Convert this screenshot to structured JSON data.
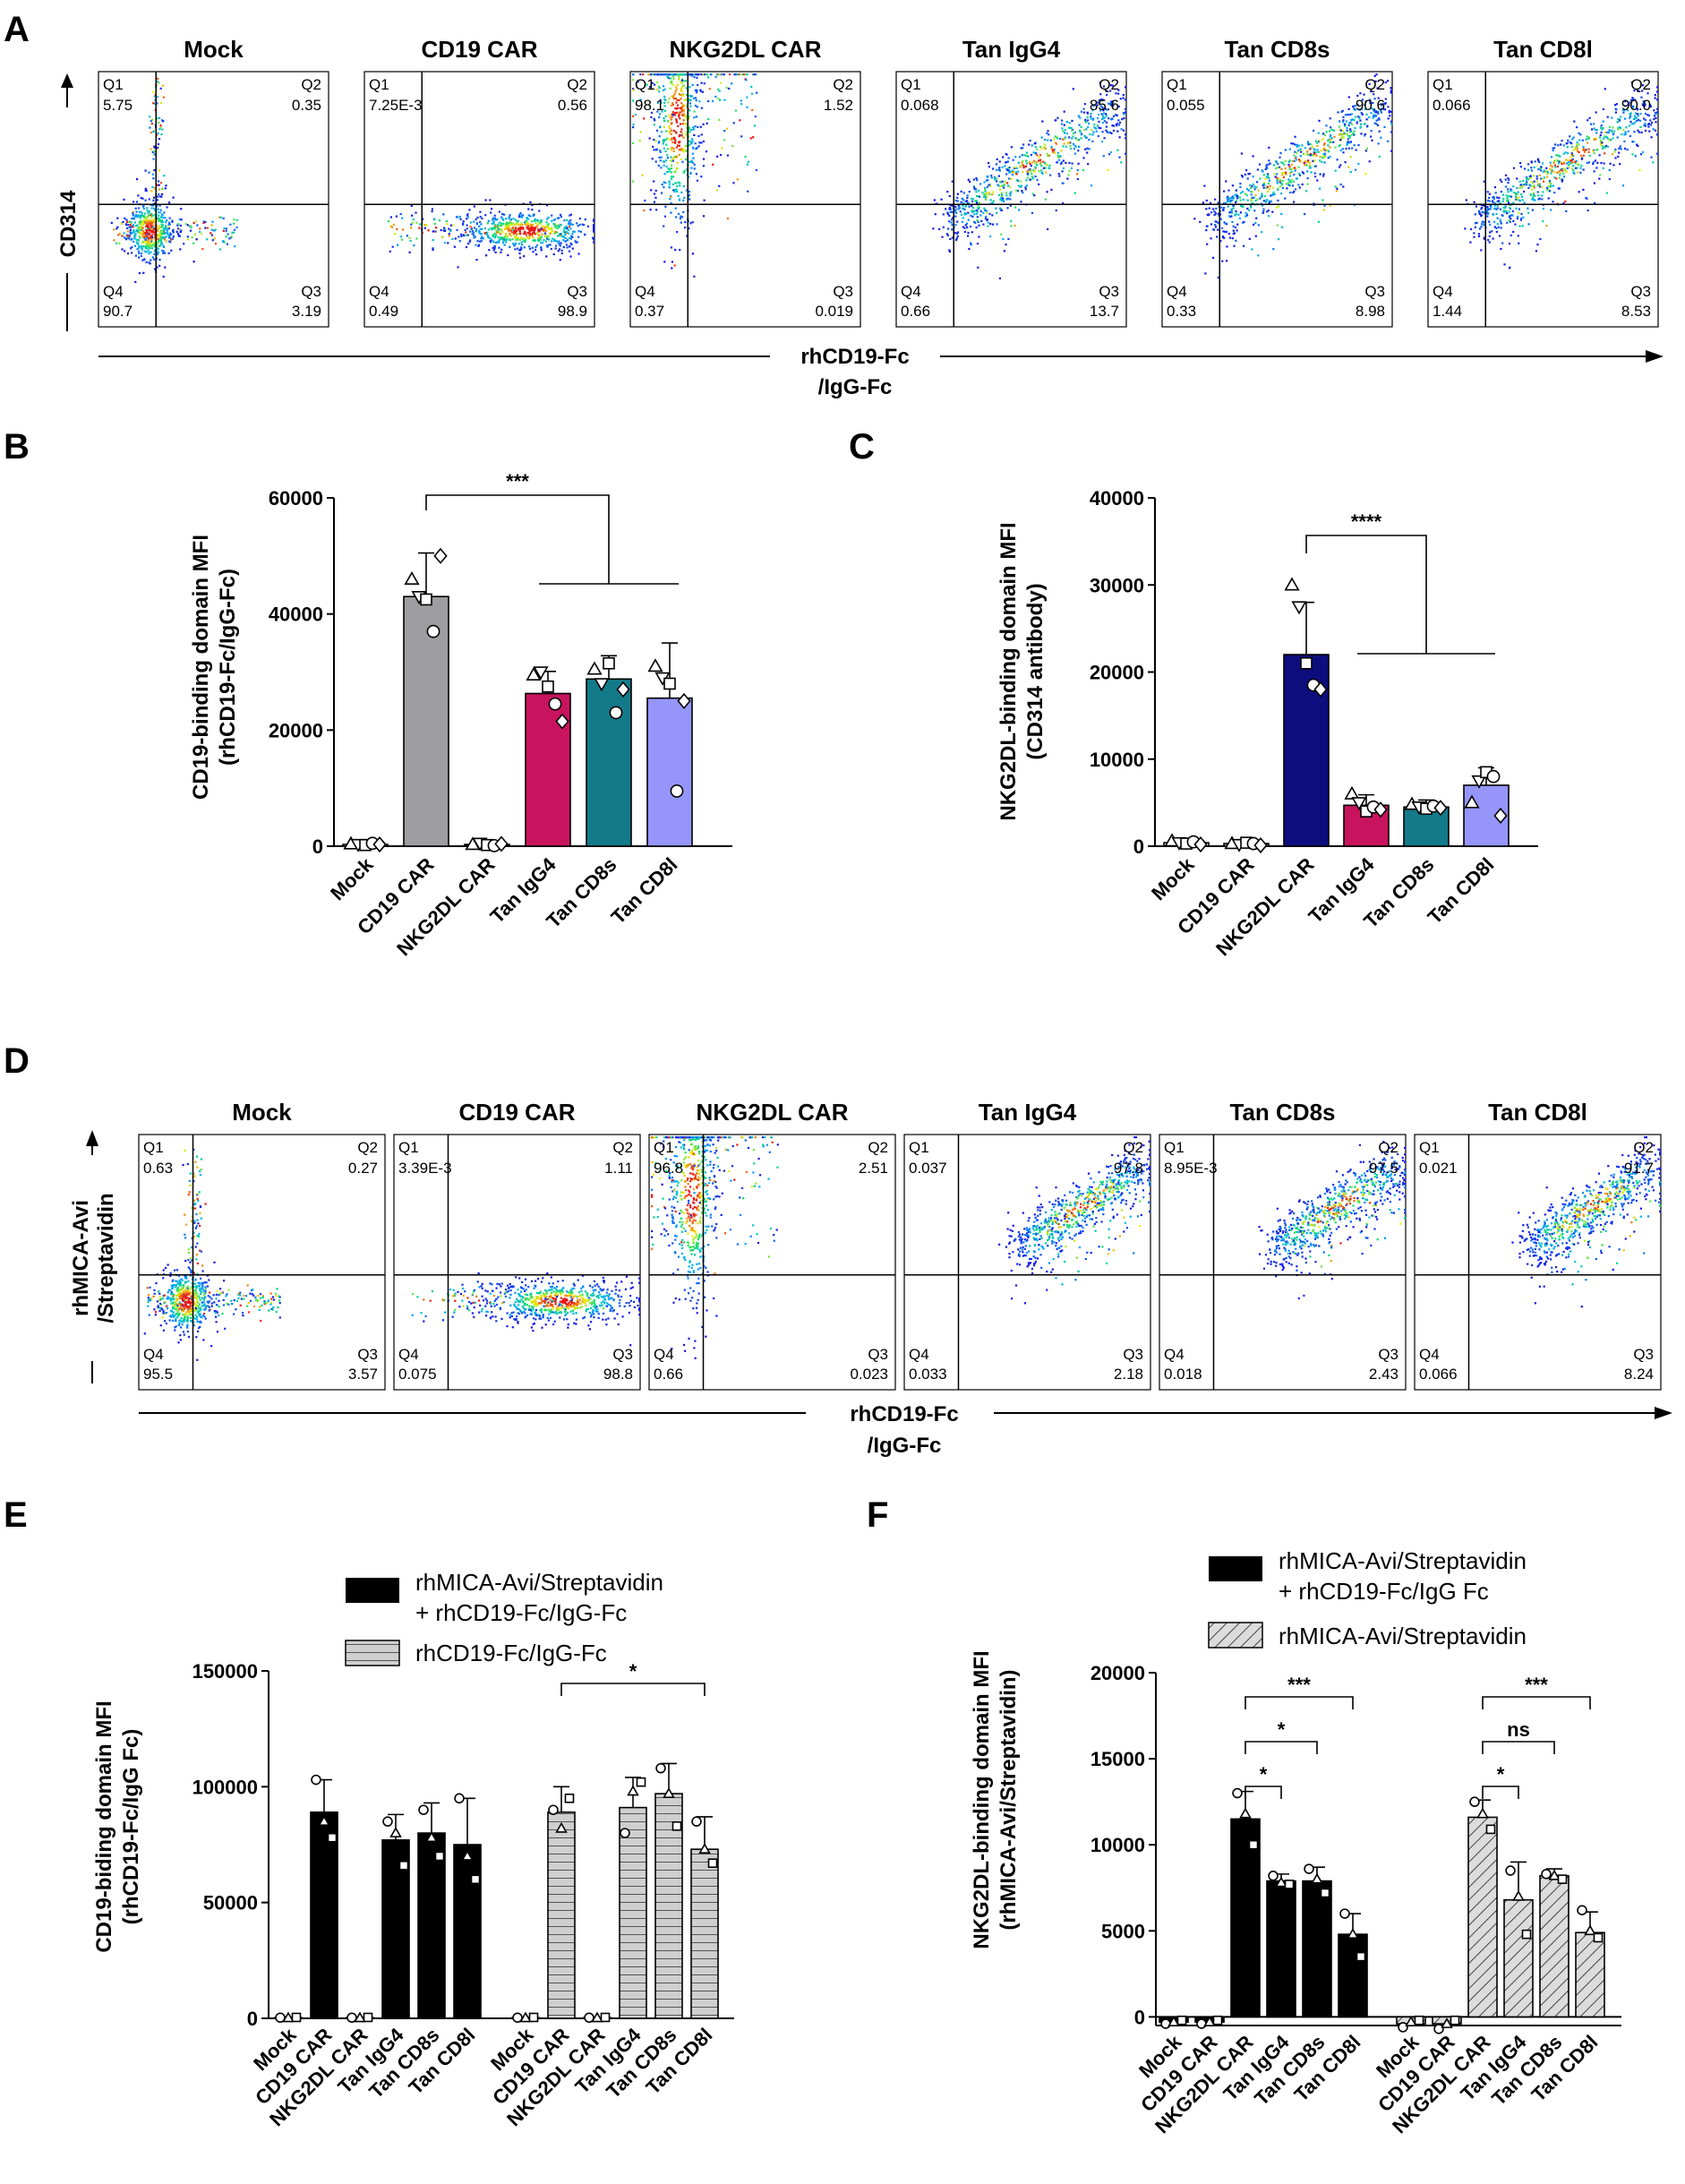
{
  "panel_labels": [
    "A",
    "B",
    "C",
    "D",
    "E",
    "F"
  ],
  "colors": {
    "mock": "#ffffff",
    "cd19car": "#9e9ea2",
    "nkg2dl": "#0d0d7e",
    "igg4": "#c8145e",
    "cd8s": "#137a8a",
    "cd8l": "#9696fa",
    "black": "#000000",
    "grey": "#cccccc"
  },
  "chart_data": [
    {
      "id": "A",
      "type": "scatter",
      "subtype": "flow-cytometry-quadrant",
      "xlabel": "rhCD19-Fc /IgG-Fc",
      "xlabel_lines": [
        "rhCD19-Fc",
        "/IgG-Fc"
      ],
      "ylabel": "CD314",
      "quadrant_labels": [
        "Q1",
        "Q2",
        "Q3",
        "Q4"
      ],
      "plots": [
        {
          "title": "Mock",
          "Q1": "5.75",
          "Q2": "0.35",
          "Q3": "3.19",
          "Q4": "90.7",
          "pattern": "neg"
        },
        {
          "title": "CD19 CAR",
          "Q1": "7.25E-3",
          "Q2": "0.56",
          "Q3": "98.9",
          "Q4": "0.49",
          "pattern": "xpos"
        },
        {
          "title": "NKG2DL CAR",
          "Q1": "98.1",
          "Q2": "1.52",
          "Q3": "0.019",
          "Q4": "0.37",
          "pattern": "ypos"
        },
        {
          "title": "Tan IgG4",
          "Q1": "0.068",
          "Q2": "85.6",
          "Q3": "13.7",
          "Q4": "0.66",
          "pattern": "diag"
        },
        {
          "title": "Tan CD8s",
          "Q1": "0.055",
          "Q2": "90.6",
          "Q3": "8.98",
          "Q4": "0.33",
          "pattern": "diag"
        },
        {
          "title": "Tan CD8l",
          "Q1": "0.066",
          "Q2": "90.0",
          "Q3": "8.53",
          "Q4": "1.44",
          "pattern": "diag"
        }
      ]
    },
    {
      "id": "B",
      "type": "bar",
      "ylabel": "CD19-binding domain MFI (rhCD19-Fc/IgG-Fc)",
      "ylabel_lines": [
        "CD19-binding domain MFI",
        "(rhCD19-Fc/IgG-Fc)"
      ],
      "categories": [
        "Mock",
        "CD19 CAR",
        "NKG2DL CAR",
        "Tan IgG4",
        "Tan CD8s",
        "Tan CD8l"
      ],
      "values": [
        300,
        43000,
        300,
        26300,
        28800,
        25500
      ],
      "errors": [
        300,
        7500,
        300,
        3800,
        4000,
        9500
      ],
      "points": [
        [
          400,
          300,
          200,
          500,
          300
        ],
        [
          46000,
          43000,
          42500,
          37000,
          50000
        ],
        [
          300,
          500,
          200,
          100,
          400
        ],
        [
          29500,
          30000,
          27500,
          24500,
          21500
        ],
        [
          30500,
          28000,
          31500,
          23000,
          27000
        ],
        [
          31000,
          29000,
          28000,
          9500,
          25000
        ]
      ],
      "ylim": [
        0,
        60000
      ],
      "yticks": [
        0,
        20000,
        40000,
        60000
      ],
      "significance": [
        {
          "label": "***",
          "from": 1,
          "to": [
            3,
            4,
            5
          ]
        }
      ]
    },
    {
      "id": "C",
      "type": "bar",
      "ylabel": "NKG2DL-binding domain MFI (CD314 antibody)",
      "ylabel_lines": [
        "NKG2DL-binding domain MFI",
        "(CD314 antibody)"
      ],
      "categories": [
        "Mock",
        "CD19 CAR",
        "NKG2DL CAR",
        "Tan IgG4",
        "Tan CD8s",
        "Tan CD8l"
      ],
      "values": [
        400,
        300,
        22000,
        4700,
        4500,
        7000
      ],
      "errors": [
        300,
        200,
        6000,
        1200,
        800,
        2000
      ],
      "points": [
        [
          600,
          400,
          300,
          500,
          200
        ],
        [
          300,
          200,
          400,
          300,
          100
        ],
        [
          30000,
          27500,
          21000,
          18500,
          18000
        ],
        [
          6000,
          5000,
          4000,
          4500,
          4200
        ],
        [
          4800,
          4500,
          4300,
          4600,
          4400
        ],
        [
          5000,
          7500,
          8500,
          8000,
          3500
        ]
      ],
      "ylim": [
        0,
        40000
      ],
      "yticks": [
        0,
        10000,
        20000,
        30000,
        40000
      ],
      "significance": [
        {
          "label": "****",
          "from": 2,
          "to": [
            3,
            4,
            5
          ]
        }
      ]
    },
    {
      "id": "D",
      "type": "scatter",
      "subtype": "flow-cytometry-quadrant",
      "xlabel": "rhCD19-Fc /IgG-Fc",
      "xlabel_lines": [
        "rhCD19-Fc",
        "/IgG-Fc"
      ],
      "ylabel": "rhMICA-Avi /Streptavidin",
      "ylabel_lines": [
        "rhMICA-Avi",
        "/Streptavidin"
      ],
      "quadrant_labels": [
        "Q1",
        "Q2",
        "Q3",
        "Q4"
      ],
      "plots": [
        {
          "title": "Mock",
          "Q1": "0.63",
          "Q2": "0.27",
          "Q3": "3.57",
          "Q4": "95.5",
          "pattern": "neg"
        },
        {
          "title": "CD19 CAR",
          "Q1": "3.39E-3",
          "Q2": "1.11",
          "Q3": "98.8",
          "Q4": "0.075",
          "pattern": "xpos"
        },
        {
          "title": "NKG2DL CAR",
          "Q1": "96.8",
          "Q2": "2.51",
          "Q3": "0.023",
          "Q4": "0.66",
          "pattern": "ypos"
        },
        {
          "title": "Tan IgG4",
          "Q1": "0.037",
          "Q2": "97.8",
          "Q3": "2.18",
          "Q4": "0.033",
          "pattern": "diag2"
        },
        {
          "title": "Tan CD8s",
          "Q1": "8.95E-3",
          "Q2": "97.5",
          "Q3": "2.43",
          "Q4": "0.018",
          "pattern": "diag2"
        },
        {
          "title": "Tan CD8l",
          "Q1": "0.021",
          "Q2": "91.7",
          "Q3": "8.24",
          "Q4": "0.066",
          "pattern": "diag2"
        }
      ]
    },
    {
      "id": "E",
      "type": "bar",
      "ylabel": "CD19-biding domain MFI (rhCD19-Fc/IgG Fc)",
      "ylabel_lines": [
        "CD19-biding domain MFI",
        "(rhCD19-Fc/IgG Fc)"
      ],
      "categories": [
        "Mock",
        "CD19 CAR",
        "NKG2DL CAR",
        "Tan IgG4",
        "Tan CD8s",
        "Tan CD8l"
      ],
      "legend": [
        "rhMICA-Avi/Streptavidin + rhCD19-Fc/IgG-Fc",
        "rhCD19-Fc/IgG-Fc"
      ],
      "legend_lines": [
        [
          "rhMICA-Avi/Streptavidin",
          "+ rhCD19-Fc/IgG-Fc"
        ],
        [
          "rhCD19-Fc/IgG-Fc"
        ]
      ],
      "series": [
        {
          "name": "rhMICA-Avi/Streptavidin + rhCD19-Fc/IgG-Fc",
          "fill": "black",
          "values": [
            300,
            89000,
            300,
            77000,
            80000,
            75000
          ],
          "errors": [
            300,
            14000,
            300,
            11000,
            13000,
            20000
          ],
          "points": [
            [
              300,
              200,
              400
            ],
            [
              103000,
              85000,
              78000
            ],
            [
              300,
              200,
              400
            ],
            [
              85000,
              80000,
              66000
            ],
            [
              90000,
              78000,
              70000
            ],
            [
              95000,
              70000,
              60000
            ]
          ]
        },
        {
          "name": "rhCD19-Fc/IgG-Fc",
          "fill": "grey-striped",
          "values": [
            300,
            89000,
            300,
            91000,
            97000,
            73000
          ],
          "errors": [
            300,
            11000,
            300,
            13000,
            13000,
            14000
          ],
          "points": [
            [
              300,
              200,
              400
            ],
            [
              90000,
              82000,
              95000
            ],
            [
              300,
              200,
              400
            ],
            [
              80000,
              98000,
              102000
            ],
            [
              108000,
              97000,
              83000
            ],
            [
              85000,
              73000,
              67000
            ]
          ]
        }
      ],
      "ylim": [
        0,
        150000
      ],
      "yticks": [
        0,
        50000,
        100000,
        150000
      ],
      "significance": [
        {
          "label": "*",
          "series": 1,
          "from": 1,
          "to": [
            5
          ]
        }
      ]
    },
    {
      "id": "F",
      "type": "bar",
      "ylabel": "NKG2DL-binding domain MFI (rhMICA-Avi/Streptavidin)",
      "ylabel_lines": [
        "NKG2DL-binding domain MFI",
        "(rhMICA-Avi/Streptavidin)"
      ],
      "categories": [
        "Mock",
        "CD19 CAR",
        "NKG2DL CAR",
        "Tan IgG4",
        "Tan CD8s",
        "Tan CD8l"
      ],
      "legend": [
        "rhMICA-Avi/Streptavidin + rhCD19-Fc/IgG Fc",
        "rhMICA-Avi/Streptavidin"
      ],
      "legend_lines": [
        [
          "rhMICA-Avi/Streptavidin",
          "+ rhCD19-Fc/IgG Fc"
        ],
        [
          "rhMICA-Avi/Streptavidin"
        ]
      ],
      "series": [
        {
          "name": "rhMICA-Avi/Streptavidin + rhCD19-Fc/IgG Fc",
          "fill": "black",
          "values": [
            -300,
            -300,
            11500,
            7900,
            7900,
            4800
          ],
          "errors": [
            150,
            150,
            1600,
            400,
            800,
            1200
          ],
          "points": [
            [
              -400,
              -300,
              -200
            ],
            [
              -400,
              -300,
              -200
            ],
            [
              13000,
              11800,
              10000
            ],
            [
              8200,
              7800,
              7700
            ],
            [
              8600,
              8000,
              7200
            ],
            [
              6000,
              4800,
              3500
            ]
          ]
        },
        {
          "name": "rhMICA-Avi/Streptavidin",
          "fill": "grey-hatched",
          "values": [
            -400,
            -400,
            11600,
            6800,
            8200,
            4900
          ],
          "errors": [
            350,
            350,
            1000,
            2200,
            400,
            1200
          ],
          "points": [
            [
              -600,
              -300,
              -200
            ],
            [
              -700,
              -400,
              -200
            ],
            [
              12500,
              11800,
              10900
            ],
            [
              8500,
              7000,
              4800
            ],
            [
              8300,
              8200,
              8000
            ],
            [
              6200,
              5000,
              4600
            ]
          ]
        }
      ],
      "ylim": [
        -500,
        20000
      ],
      "yticks": [
        0,
        5000,
        10000,
        15000,
        20000
      ],
      "significance": [
        {
          "label": "*",
          "series": 0,
          "from": 2,
          "to": [
            3
          ]
        },
        {
          "label": "*",
          "series": 0,
          "from": 2,
          "to": [
            4
          ]
        },
        {
          "label": "***",
          "series": 0,
          "from": 2,
          "to": [
            5
          ]
        },
        {
          "label": "*",
          "series": 1,
          "from": 2,
          "to": [
            3
          ]
        },
        {
          "label": "ns",
          "series": 1,
          "from": 2,
          "to": [
            4
          ]
        },
        {
          "label": "***",
          "series": 1,
          "from": 2,
          "to": [
            5
          ]
        }
      ]
    }
  ]
}
